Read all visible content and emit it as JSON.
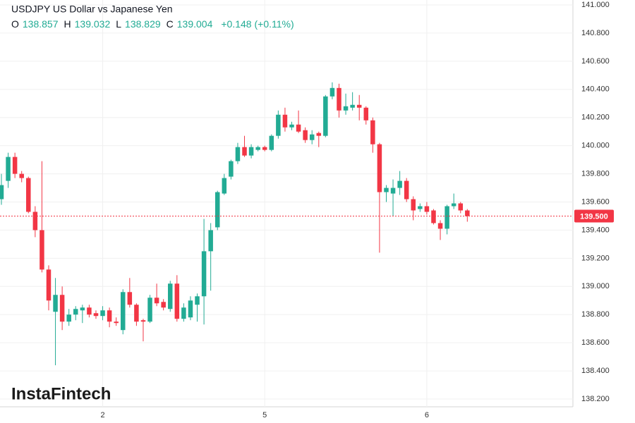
{
  "chart_data": {
    "type": "candlestick",
    "title": "USDJPY US Dollar vs Japanese Yen",
    "legend": [
      {
        "label": "O",
        "value": "138.857"
      },
      {
        "label": "H",
        "value": "139.032"
      },
      {
        "label": "L",
        "value": "138.829"
      },
      {
        "label": "C",
        "value": "139.004"
      }
    ],
    "change": "+0.148 (+0.11%)",
    "watermark": "InstaFintech",
    "categories": [
      null,
      null,
      null,
      null,
      null,
      null,
      null,
      null,
      null,
      null,
      null,
      null,
      null,
      null,
      null,
      "2",
      null,
      null,
      null,
      null,
      null,
      null,
      null,
      null,
      null,
      null,
      null,
      null,
      null,
      null,
      null,
      null,
      null,
      null,
      null,
      null,
      null,
      null,
      null,
      "5",
      null,
      null,
      null,
      null,
      null,
      null,
      null,
      null,
      null,
      null,
      null,
      null,
      null,
      null,
      null,
      null,
      null,
      null,
      null,
      null,
      null,
      null,
      null,
      "6",
      null,
      null,
      null,
      null,
      null,
      null
    ],
    "open": [
      139.62,
      139.75,
      139.92,
      139.8,
      139.77,
      139.53,
      139.4,
      139.12,
      138.82,
      138.94,
      138.75,
      138.8,
      138.83,
      138.85,
      138.81,
      138.79,
      138.83,
      138.75,
      138.69,
      138.96,
      138.87,
      138.76,
      138.75,
      138.92,
      138.89,
      138.84,
      139.02,
      138.77,
      138.78,
      138.87,
      138.93,
      139.25,
      139.42,
      139.66,
      139.78,
      139.89,
      139.99,
      139.93,
      139.97,
      139.99,
      139.97,
      140.07,
      140.22,
      140.13,
      140.15,
      140.11,
      140.04,
      140.09,
      140.07,
      140.35,
      140.41,
      140.25,
      140.27,
      140.29,
      140.27,
      140.18,
      140.01,
      139.67,
      139.66,
      139.7,
      139.75,
      139.62,
      139.55,
      139.57,
      139.54,
      139.45,
      139.41,
      139.57,
      139.59,
      139.54
    ],
    "high": [
      139.8,
      139.95,
      139.95,
      139.82,
      139.78,
      139.57,
      139.89,
      139.15,
      139.06,
      139.0,
      138.84,
      138.86,
      138.87,
      138.87,
      138.83,
      138.86,
      138.85,
      138.78,
      138.98,
      139.06,
      138.88,
      138.77,
      138.94,
      139.02,
      138.91,
      139.04,
      139.08,
      138.88,
      138.93,
      138.95,
      139.48,
      139.45,
      139.68,
      139.8,
      139.9,
      140.02,
      140.07,
      140.01,
      140.0,
      140.0,
      140.08,
      140.25,
      140.27,
      140.17,
      140.25,
      140.13,
      140.11,
      140.1,
      140.36,
      140.45,
      140.44,
      140.37,
      140.38,
      140.36,
      140.28,
      140.2,
      140.02,
      139.72,
      139.76,
      139.82,
      139.77,
      139.64,
      139.59,
      139.6,
      139.55,
      139.47,
      139.58,
      139.66,
      139.6,
      139.55
    ],
    "low": [
      139.58,
      139.7,
      139.77,
      139.74,
      139.52,
      139.35,
      139.1,
      138.83,
      138.44,
      138.69,
      138.72,
      138.76,
      138.74,
      138.78,
      138.77,
      138.76,
      138.71,
      138.72,
      138.66,
      138.85,
      138.72,
      138.61,
      138.74,
      138.86,
      138.83,
      138.82,
      138.75,
      138.75,
      138.76,
      138.75,
      138.73,
      138.97,
      139.4,
      139.65,
      139.76,
      139.87,
      139.92,
      139.91,
      139.96,
      139.96,
      139.96,
      140.05,
      140.1,
      140.11,
      140.09,
      140.02,
      140.01,
      139.99,
      140.06,
      140.33,
      140.2,
      140.22,
      140.25,
      140.18,
      140.15,
      139.95,
      139.24,
      139.6,
      139.5,
      139.65,
      139.6,
      139.47,
      139.53,
      139.51,
      139.44,
      139.33,
      139.37,
      139.55,
      139.52,
      139.46
    ],
    "close": [
      139.72,
      139.92,
      139.8,
      139.77,
      139.53,
      139.4,
      139.12,
      138.9,
      138.94,
      138.75,
      138.8,
      138.84,
      138.85,
      138.8,
      138.79,
      138.83,
      138.75,
      138.74,
      138.96,
      138.87,
      138.75,
      138.75,
      138.92,
      138.88,
      138.85,
      139.02,
      138.77,
      138.85,
      138.9,
      138.93,
      139.25,
      139.4,
      139.67,
      139.77,
      139.89,
      139.99,
      139.93,
      139.99,
      139.99,
      139.97,
      140.07,
      140.22,
      140.13,
      140.15,
      140.1,
      140.04,
      140.08,
      140.07,
      140.35,
      140.41,
      140.25,
      140.28,
      140.29,
      140.27,
      140.18,
      140.01,
      139.67,
      139.7,
      139.7,
      139.75,
      139.62,
      139.54,
      139.57,
      139.53,
      139.45,
      139.41,
      139.57,
      139.59,
      139.54,
      139.5
    ],
    "up_color": "#22ab94",
    "down_color": "#f23645",
    "ylim": [
      138.145,
      141.035
    ],
    "yticks": [
      {
        "value": 138.2,
        "label": "138.200"
      },
      {
        "value": 138.4,
        "label": "138.400"
      },
      {
        "value": 138.6,
        "label": "138.600"
      },
      {
        "value": 138.8,
        "label": "138.800"
      },
      {
        "value": 139.0,
        "label": "139.000"
      },
      {
        "value": 139.2,
        "label": "139.200"
      },
      {
        "value": 139.4,
        "label": "139.400"
      },
      {
        "value": 139.6,
        "label": "139.600"
      },
      {
        "value": 139.8,
        "label": "139.800"
      },
      {
        "value": 140.0,
        "label": "140.000"
      },
      {
        "value": 140.2,
        "label": "140.200"
      },
      {
        "value": 140.4,
        "label": "140.400"
      },
      {
        "value": 140.6,
        "label": "140.600"
      },
      {
        "value": 140.8,
        "label": "140.800"
      },
      {
        "value": 141.0,
        "label": "141.000"
      }
    ],
    "grid": true,
    "price_line": {
      "value": 139.5,
      "label": "139.500"
    }
  }
}
